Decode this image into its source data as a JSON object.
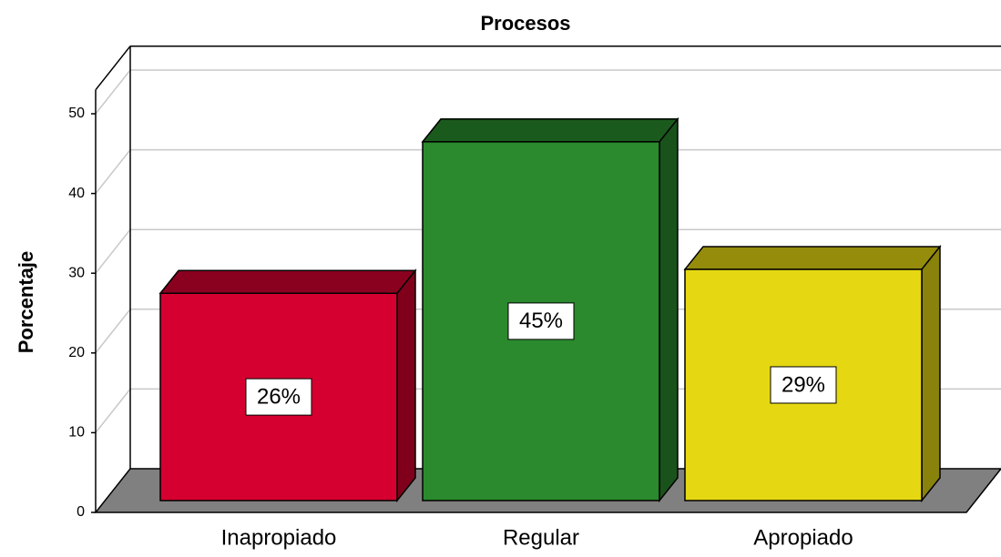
{
  "chart_data": {
    "type": "bar3d",
    "title": "Procesos",
    "y_label": "Porcentaje",
    "categories": [
      "Inapropiado",
      "Regular",
      "Apropiado"
    ],
    "values": [
      26,
      45,
      29
    ],
    "value_labels": [
      "26%",
      "45%",
      "29%"
    ],
    "colors": [
      "#d5002f",
      "#2a8a2d",
      "#e5d812"
    ],
    "ylim": [
      0,
      53
    ],
    "yticks": [
      0,
      10,
      20,
      30,
      40,
      50
    ],
    "grid": true
  }
}
